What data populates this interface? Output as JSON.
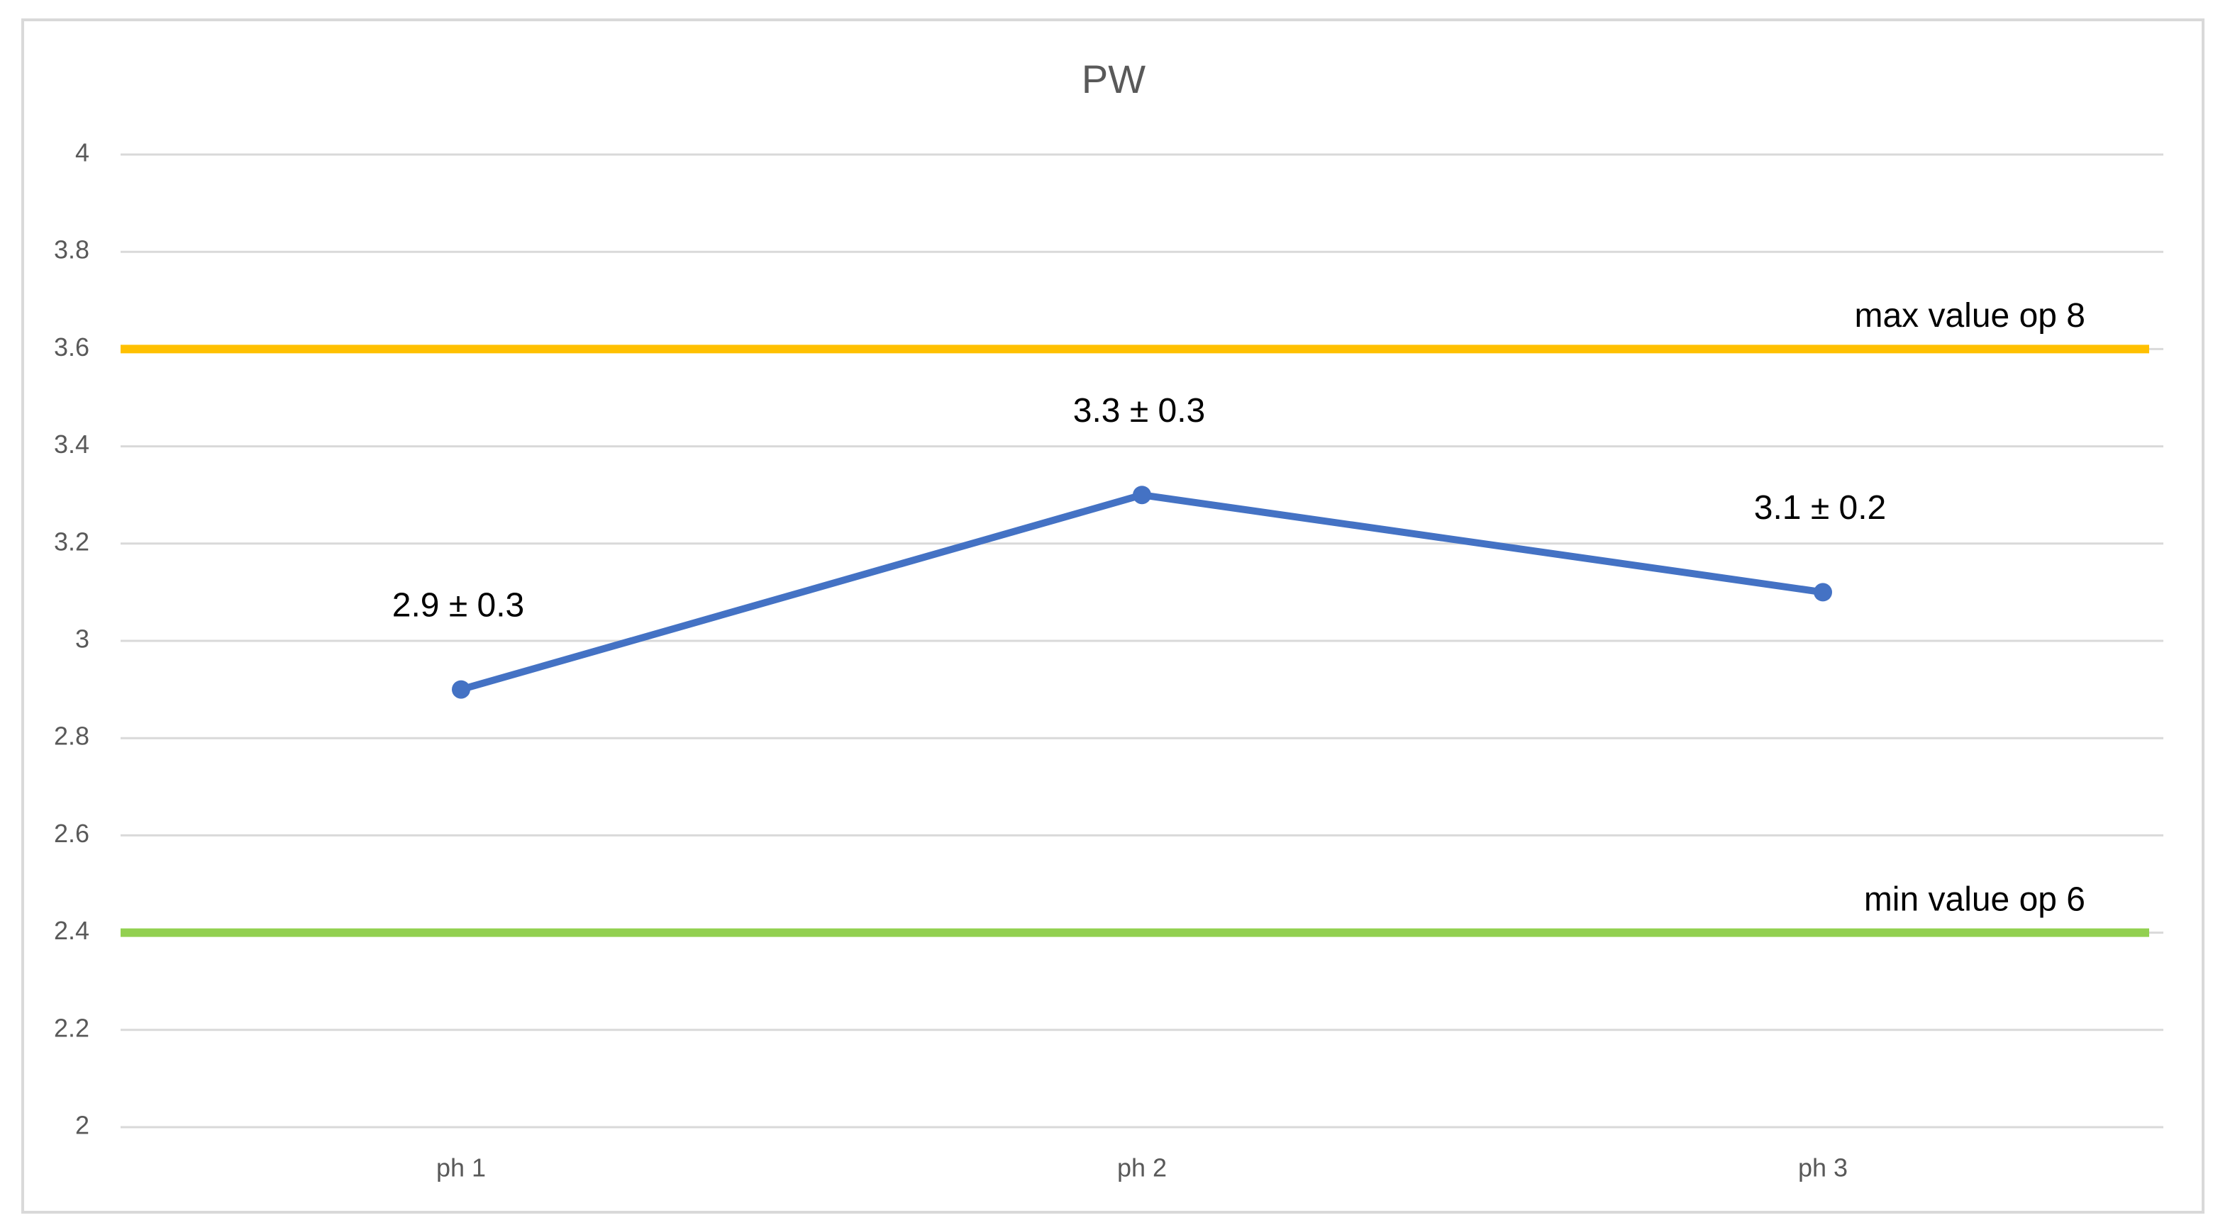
{
  "chart_data": {
    "type": "line",
    "title": "PW",
    "categories": [
      "ph 1",
      "ph 2",
      "ph 3"
    ],
    "values": [
      2.9,
      3.3,
      3.1
    ],
    "value_labels": [
      "2.9 ± 0.3",
      "3.3 ± 0.3",
      "3.1 ± 0.2"
    ],
    "color": "#4472c4",
    "ylim": [
      2,
      4
    ],
    "yticks": [
      2,
      2.2,
      2.4,
      2.6,
      2.8,
      3,
      3.2,
      3.4,
      3.6,
      3.8,
      4
    ],
    "grid": true,
    "reference_lines": [
      {
        "label": "max value op 8",
        "value": 3.6,
        "color": "#ffc000"
      },
      {
        "label": "min value op 6",
        "value": 2.4,
        "color": "#92d050"
      }
    ]
  }
}
